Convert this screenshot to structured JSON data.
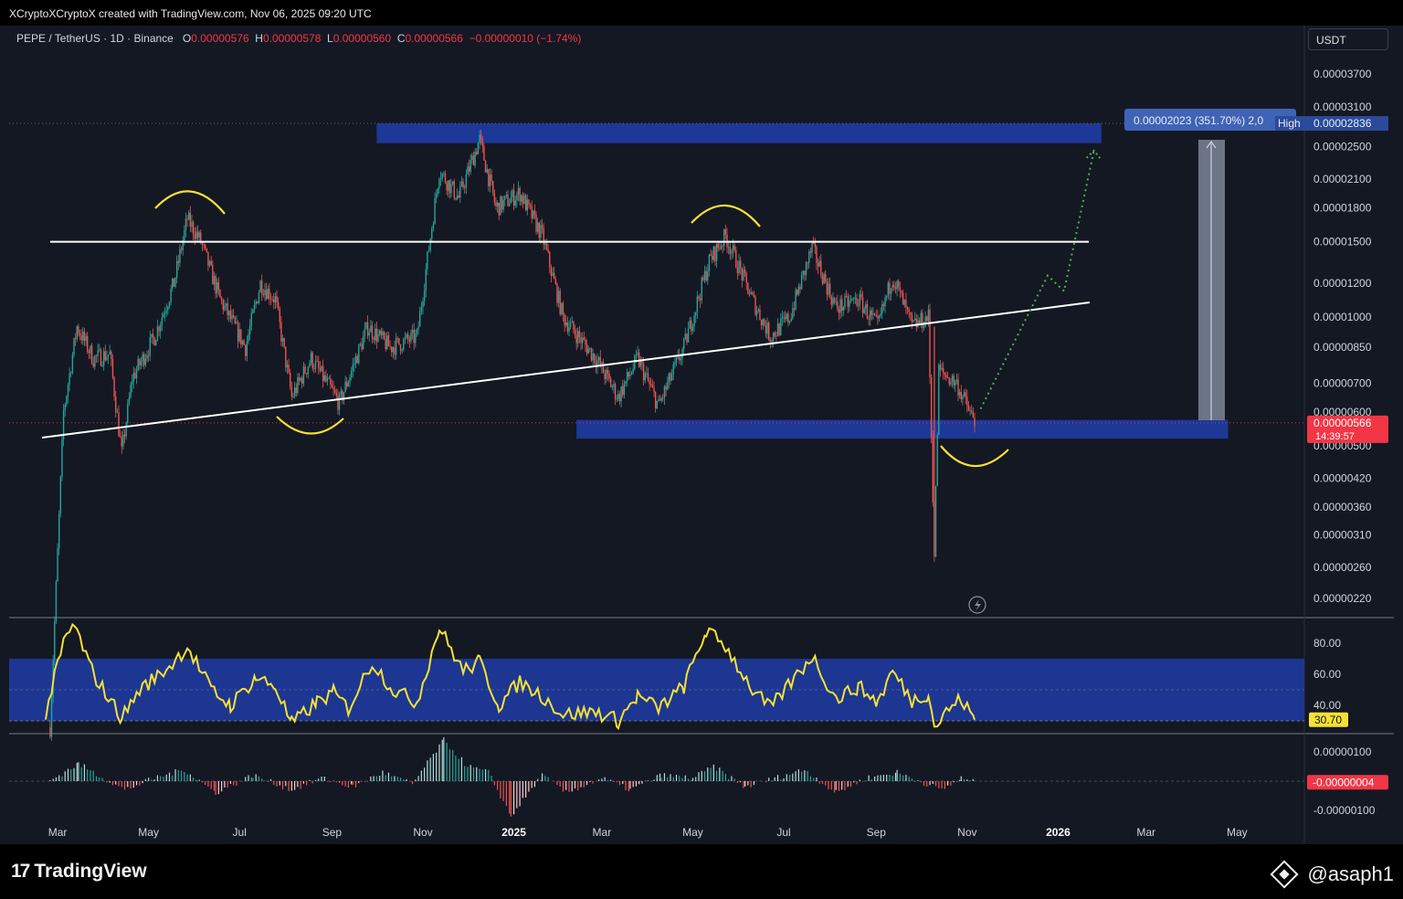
{
  "header": {
    "title": "XCryptoXCryptoX created with TradingView.com, Nov 06, 2025 09:20 UTC"
  },
  "legend": {
    "symbol": "PEPE / TetherUS · 1D · Binance",
    "open_label": "O",
    "open": "0.00000576",
    "high_label": "H",
    "high": "0.00000578",
    "low_label": "L",
    "low": "0.00000560",
    "close_label": "C",
    "close": "0.00000566",
    "change": "−0.00000010 (−1.74%)"
  },
  "quote_currency_button": "USDT",
  "price_axis": {
    "ticks": [
      "0.00003700",
      "0.00003100",
      "0.00002500",
      "0.00002100",
      "0.00001800",
      "0.00001500",
      "0.00001200",
      "0.00001000",
      "0.00000850",
      "0.00000700",
      "0.00000600",
      "0.00000500",
      "0.00000420",
      "0.00000360",
      "0.00000310",
      "0.00000260",
      "0.00000220"
    ],
    "current_price": "0.00000566",
    "countdown": "14:39:57",
    "high_label": "High",
    "high_value": "0.00002836",
    "measure_label": "0.00002023 (351.70%) 2,0"
  },
  "time_axis": {
    "ticks": [
      "Mar",
      "May",
      "Jul",
      "Sep",
      "Nov",
      "2025",
      "Mar",
      "May",
      "Jul",
      "Sep",
      "Nov",
      "2026",
      "Mar",
      "May"
    ]
  },
  "rsi_axis": {
    "ticks": [
      "80.00",
      "60.00",
      "40.00"
    ],
    "current": "30.70"
  },
  "macd_axis": {
    "ticks": [
      "0.00000100",
      "-0.00000100"
    ],
    "current": "-0.00000004"
  },
  "footer": {
    "logo_text": "TradingView",
    "watermark": "@asaph1"
  },
  "colors": {
    "background": "#141823",
    "up": "#26a69a",
    "down": "#ef5350",
    "zone": "#1e3a9e",
    "rsi_line": "#f5e135",
    "price_tag": "#f23645",
    "measure_tag": "#3f63b5"
  },
  "chart_data": {
    "type": "candlestick",
    "symbol": "PEPE / TetherUS",
    "interval": "1D",
    "exchange": "Binance",
    "y_scale": "log",
    "price_axis_range": [
      2e-06,
      4e-05
    ],
    "time_range": [
      "2024-02-20",
      "2026-06-15"
    ],
    "last_candle": {
      "open": 5.76e-06,
      "high": 5.78e-06,
      "low": 5.6e-06,
      "close": 5.66e-06
    },
    "price_path": [
      [
        "2024-02-25",
        1.1e-06
      ],
      [
        "2024-03-05",
        6e-06
      ],
      [
        "2024-03-14",
        9.5e-06
      ],
      [
        "2024-03-25",
        8e-06
      ],
      [
        "2024-04-05",
        8.2e-06
      ],
      [
        "2024-04-13",
        4.8e-06
      ],
      [
        "2024-04-20",
        7.2e-06
      ],
      [
        "2024-05-05",
        9e-06
      ],
      [
        "2024-05-18",
        1.2e-05
      ],
      [
        "2024-05-27",
        1.7e-05
      ],
      [
        "2024-06-05",
        1.5e-05
      ],
      [
        "2024-06-18",
        1.1e-05
      ],
      [
        "2024-07-05",
        8.5e-06
      ],
      [
        "2024-07-15",
        1.2e-05
      ],
      [
        "2024-07-25",
        1.1e-05
      ],
      [
        "2024-08-05",
        6.5e-06
      ],
      [
        "2024-08-18",
        8e-06
      ],
      [
        "2024-09-06",
        6.3e-06
      ],
      [
        "2024-09-25",
        9.5e-06
      ],
      [
        "2024-10-10",
        8.5e-06
      ],
      [
        "2024-10-28",
        9e-06
      ],
      [
        "2024-11-12",
        2.2e-05
      ],
      [
        "2024-11-25",
        1.9e-05
      ],
      [
        "2024-12-09",
        2.6e-05
      ],
      [
        "2024-12-20",
        1.8e-05
      ],
      [
        "2025-01-05",
        1.95e-05
      ],
      [
        "2025-01-20",
        1.55e-05
      ],
      [
        "2025-02-03",
        1e-05
      ],
      [
        "2025-02-25",
        8e-06
      ],
      [
        "2025-03-12",
        6.5e-06
      ],
      [
        "2025-03-25",
        8e-06
      ],
      [
        "2025-04-08",
        6.2e-06
      ],
      [
        "2025-04-25",
        8.5e-06
      ],
      [
        "2025-05-12",
        1.35e-05
      ],
      [
        "2025-05-23",
        1.55e-05
      ],
      [
        "2025-06-10",
        1.1e-05
      ],
      [
        "2025-06-22",
        9e-06
      ],
      [
        "2025-07-05",
        1e-05
      ],
      [
        "2025-07-20",
        1.45e-05
      ],
      [
        "2025-08-05",
        1.05e-05
      ],
      [
        "2025-08-20",
        1.1e-05
      ],
      [
        "2025-09-02",
        9.5e-06
      ],
      [
        "2025-09-12",
        1.25e-05
      ],
      [
        "2025-09-25",
        9.5e-06
      ],
      [
        "2025-10-06",
        1e-05
      ],
      [
        "2025-10-10",
        2.8e-06
      ],
      [
        "2025-10-13",
        7.5e-06
      ],
      [
        "2025-10-25",
        7e-06
      ],
      [
        "2025-11-06",
        5.66e-06
      ]
    ],
    "zones": [
      {
        "name": "resistance zone",
        "low": 2.55e-05,
        "high": 2.836e-05
      },
      {
        "name": "support zone",
        "low": 5.2e-06,
        "high": 5.75e-06
      }
    ],
    "lines": [
      {
        "name": "horizontal neckline",
        "price": 1.5e-05
      },
      {
        "name": "rising trendline",
        "from": [
          "2024-02-28",
          5.2e-06
        ],
        "to": [
          "2026-01-05",
          1.13e-05
        ]
      }
    ],
    "projection": [
      [
        "2025-11-10",
        6.1e-06
      ],
      [
        "2025-12-25",
        1.25e-05
      ],
      [
        "2026-01-05",
        1.15e-05
      ],
      [
        "2026-01-25",
        2.45e-05
      ]
    ],
    "measure": {
      "change": 2.023e-05,
      "percent": 351.7
    },
    "rsi": {
      "current": 30.7,
      "band": [
        30,
        70
      ],
      "ylim": [
        20,
        100
      ],
      "series": [
        [
          "2024-02-22",
          35
        ],
        [
          "2024-03-05",
          80
        ],
        [
          "2024-03-12",
          92
        ],
        [
          "2024-03-25",
          60
        ],
        [
          "2024-04-13",
          32
        ],
        [
          "2024-04-25",
          50
        ],
        [
          "2024-05-15",
          65
        ],
        [
          "2024-05-27",
          78
        ],
        [
          "2024-06-12",
          50
        ],
        [
          "2024-06-25",
          40
        ],
        [
          "2024-07-12",
          58
        ],
        [
          "2024-07-25",
          52
        ],
        [
          "2024-08-05",
          28
        ],
        [
          "2024-08-22",
          42
        ],
        [
          "2024-09-02",
          48
        ],
        [
          "2024-09-12",
          38
        ],
        [
          "2024-09-28",
          68
        ],
        [
          "2024-10-12",
          50
        ],
        [
          "2024-10-28",
          42
        ],
        [
          "2024-11-12",
          90
        ],
        [
          "2024-11-28",
          62
        ],
        [
          "2024-12-09",
          68
        ],
        [
          "2024-12-22",
          40
        ],
        [
          "2025-01-05",
          55
        ],
        [
          "2025-01-20",
          46
        ],
        [
          "2025-02-03",
          34
        ],
        [
          "2025-02-25",
          36
        ],
        [
          "2025-03-12",
          30
        ],
        [
          "2025-03-25",
          46
        ],
        [
          "2025-04-08",
          38
        ],
        [
          "2025-04-25",
          52
        ],
        [
          "2025-05-10",
          88
        ],
        [
          "2025-05-23",
          78
        ],
        [
          "2025-06-10",
          50
        ],
        [
          "2025-06-22",
          38
        ],
        [
          "2025-07-12",
          62
        ],
        [
          "2025-07-20",
          72
        ],
        [
          "2025-08-05",
          44
        ],
        [
          "2025-08-20",
          52
        ],
        [
          "2025-09-02",
          42
        ],
        [
          "2025-09-12",
          62
        ],
        [
          "2025-09-25",
          43
        ],
        [
          "2025-10-06",
          48
        ],
        [
          "2025-10-10",
          26
        ],
        [
          "2025-10-20",
          38
        ],
        [
          "2025-10-28",
          44
        ],
        [
          "2025-11-06",
          30.7
        ]
      ]
    },
    "macd_histogram": {
      "current": -4e-08,
      "series": [
        [
          "2024-02-25",
          2e-08
        ],
        [
          "2024-03-15",
          6e-07
        ],
        [
          "2024-04-01",
          1e-07
        ],
        [
          "2024-04-15",
          -3e-07
        ],
        [
          "2024-05-05",
          1e-07
        ],
        [
          "2024-05-25",
          4e-07
        ],
        [
          "2024-06-15",
          -4e-07
        ],
        [
          "2024-07-10",
          2e-07
        ],
        [
          "2024-08-05",
          -3e-07
        ],
        [
          "2024-08-25",
          1e-07
        ],
        [
          "2024-09-15",
          -2e-07
        ],
        [
          "2024-10-05",
          3e-07
        ],
        [
          "2024-10-25",
          -1e-07
        ],
        [
          "2024-11-15",
          1.4e-06
        ],
        [
          "2024-12-01",
          5e-07
        ],
        [
          "2024-12-15",
          3e-07
        ],
        [
          "2024-12-30",
          -1.2e-06
        ],
        [
          "2025-01-20",
          2e-07
        ],
        [
          "2025-02-05",
          -4e-07
        ],
        [
          "2025-03-01",
          1e-07
        ],
        [
          "2025-03-20",
          -3e-07
        ],
        [
          "2025-04-10",
          2e-07
        ],
        [
          "2025-05-01",
          1e-07
        ],
        [
          "2025-05-15",
          5e-07
        ],
        [
          "2025-06-05",
          -2e-07
        ],
        [
          "2025-06-25",
          1e-07
        ],
        [
          "2025-07-15",
          4e-07
        ],
        [
          "2025-08-05",
          -4e-07
        ],
        [
          "2025-08-25",
          1e-07
        ],
        [
          "2025-09-15",
          3e-07
        ],
        [
          "2025-10-05",
          -1e-07
        ],
        [
          "2025-10-15",
          -3e-07
        ],
        [
          "2025-10-28",
          1e-07
        ],
        [
          "2025-11-06",
          -4e-08
        ]
      ]
    }
  }
}
